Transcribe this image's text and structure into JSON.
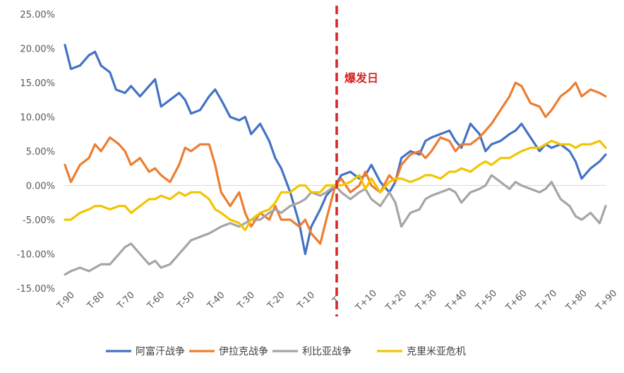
{
  "chart_data": {
    "type": "line",
    "title": "",
    "xlabel": "",
    "ylabel": "",
    "x_tick_labels": [
      "T-90",
      "T-80",
      "T-70",
      "T-60",
      "T-50",
      "T-40",
      "T-30",
      "T-20",
      "T-10",
      "T",
      "T+10",
      "T+20",
      "T+30",
      "T+40",
      "T+50",
      "T+60",
      "T+70",
      "T+80",
      "T+90"
    ],
    "y_tick_labels": [
      "-15.00%",
      "-10.00%",
      "-5.00%",
      "0.00%",
      "5.00%",
      "10.00%",
      "15.00%",
      "20.00%",
      "25.00%"
    ],
    "ylim": [
      -15,
      25
    ],
    "xlim": [
      -90,
      90
    ],
    "y_unit": "%",
    "grid": false,
    "legend_position": "bottom",
    "event_marker": {
      "x": 0,
      "label": "爆发日",
      "color": "#d62728",
      "style": "dashed"
    },
    "series": [
      {
        "name": "阿富汗战争",
        "color": "#4472c4",
        "x": [
          -90,
          -88,
          -85,
          -82,
          -80,
          -78,
          -75,
          -73,
          -70,
          -68,
          -65,
          -62,
          -60,
          -58,
          -55,
          -52,
          -50,
          -48,
          -45,
          -42,
          -40,
          -38,
          -35,
          -32,
          -30,
          -28,
          -25,
          -22,
          -20,
          -18,
          -15,
          -12,
          -10,
          -8,
          -5,
          -3,
          0,
          2,
          5,
          8,
          10,
          12,
          15,
          18,
          20,
          22,
          25,
          28,
          30,
          32,
          35,
          38,
          40,
          42,
          45,
          48,
          50,
          52,
          55,
          58,
          60,
          62,
          65,
          68,
          70,
          72,
          75,
          78,
          80,
          82,
          85,
          88,
          90
        ],
        "values": [
          20.5,
          17,
          17.5,
          19,
          19.5,
          17.5,
          16.5,
          14,
          13.5,
          14.5,
          13,
          14.5,
          15.5,
          11.5,
          12.5,
          13.5,
          12.5,
          10.5,
          11,
          13,
          14,
          12.5,
          10,
          9.5,
          10,
          7.5,
          9,
          6.5,
          4,
          2.5,
          -1,
          -5.5,
          -10,
          -6,
          -3.5,
          -1.5,
          0,
          1.5,
          2,
          1,
          1.5,
          3,
          0.5,
          -1,
          0.5,
          4,
          5,
          4.5,
          6.5,
          7,
          7.5,
          8,
          6.5,
          5.5,
          9,
          7.5,
          5,
          6,
          6.5,
          7.5,
          8,
          9,
          7,
          5,
          6,
          5.5,
          6,
          5,
          3.5,
          1,
          2.5,
          3.5,
          4.5
        ]
      },
      {
        "name": "伊拉克战争",
        "color": "#ed7d31",
        "x": [
          -90,
          -88,
          -85,
          -82,
          -80,
          -78,
          -75,
          -72,
          -70,
          -68,
          -65,
          -62,
          -60,
          -58,
          -55,
          -52,
          -50,
          -48,
          -45,
          -42,
          -40,
          -38,
          -35,
          -32,
          -30,
          -28,
          -25,
          -22,
          -20,
          -18,
          -15,
          -12,
          -10,
          -8,
          -5,
          -3,
          0,
          2,
          5,
          8,
          10,
          12,
          15,
          18,
          20,
          22,
          25,
          28,
          30,
          32,
          35,
          38,
          40,
          42,
          45,
          48,
          50,
          52,
          55,
          58,
          60,
          62,
          65,
          68,
          70,
          72,
          75,
          78,
          80,
          82,
          85,
          88,
          90
        ],
        "values": [
          3,
          0.5,
          3,
          4,
          6,
          5,
          7,
          6,
          5,
          3,
          4,
          2,
          2.5,
          1.5,
          0.5,
          3,
          5.5,
          5,
          6,
          6,
          3,
          -1,
          -3,
          -1,
          -4,
          -6,
          -4,
          -5,
          -3,
          -5,
          -5,
          -6,
          -5,
          -7,
          -8.5,
          -5,
          0,
          1,
          -1,
          0,
          2,
          0,
          -1,
          1.5,
          0.5,
          3,
          4.5,
          5,
          4,
          5,
          7,
          6.5,
          5,
          6,
          6,
          7,
          8,
          9,
          11,
          13,
          15,
          14.5,
          12,
          11.5,
          10,
          11,
          13,
          14,
          15,
          13,
          14,
          13.5,
          13
        ]
      },
      {
        "name": "利比亚战争",
        "color": "#a5a5a5",
        "x": [
          -90,
          -88,
          -85,
          -82,
          -80,
          -78,
          -75,
          -72,
          -70,
          -68,
          -65,
          -62,
          -60,
          -58,
          -55,
          -52,
          -50,
          -48,
          -45,
          -42,
          -40,
          -38,
          -35,
          -32,
          -30,
          -28,
          -25,
          -22,
          -20,
          -18,
          -15,
          -12,
          -10,
          -8,
          -5,
          -3,
          0,
          2,
          5,
          8,
          10,
          12,
          15,
          18,
          20,
          22,
          25,
          28,
          30,
          32,
          35,
          38,
          40,
          42,
          45,
          48,
          50,
          52,
          55,
          58,
          60,
          62,
          65,
          68,
          70,
          72,
          75,
          78,
          80,
          82,
          85,
          88,
          90
        ],
        "values": [
          -13,
          -12.5,
          -12,
          -12.5,
          -12,
          -11.5,
          -11.5,
          -10,
          -9,
          -8.5,
          -10,
          -11.5,
          -11,
          -12,
          -11.5,
          -10,
          -9,
          -8,
          -7.5,
          -7,
          -6.5,
          -6,
          -5.5,
          -6,
          -5.5,
          -5,
          -5,
          -4,
          -3.5,
          -4,
          -3,
          -2.5,
          -2,
          -1,
          -1.5,
          -1,
          0,
          -1,
          -2,
          -1,
          -0.5,
          -2,
          -3,
          -1,
          -2.5,
          -6,
          -4,
          -3.5,
          -2,
          -1.5,
          -1,
          -0.5,
          -1,
          -2.5,
          -1,
          -0.5,
          0,
          1.5,
          0.5,
          -0.5,
          0.5,
          0,
          -0.5,
          -1,
          -0.5,
          0.5,
          -2,
          -3,
          -4.5,
          -5,
          -4,
          -5.5,
          -3
        ]
      },
      {
        "name": "克里米亚危机",
        "color": "#f2c500",
        "x": [
          -90,
          -88,
          -85,
          -82,
          -80,
          -78,
          -75,
          -72,
          -70,
          -68,
          -65,
          -62,
          -60,
          -58,
          -55,
          -52,
          -50,
          -48,
          -45,
          -42,
          -40,
          -38,
          -35,
          -32,
          -30,
          -28,
          -25,
          -22,
          -20,
          -18,
          -15,
          -12,
          -10,
          -8,
          -5,
          -3,
          0,
          2,
          5,
          8,
          10,
          12,
          15,
          18,
          20,
          22,
          25,
          28,
          30,
          32,
          35,
          38,
          40,
          42,
          45,
          48,
          50,
          52,
          55,
          58,
          60,
          62,
          65,
          68,
          70,
          72,
          75,
          78,
          80,
          82,
          85,
          88,
          90
        ],
        "values": [
          -5,
          -5,
          -4,
          -3.5,
          -3,
          -3,
          -3.5,
          -3,
          -3,
          -4,
          -3,
          -2,
          -2,
          -1.5,
          -2,
          -1,
          -1.5,
          -1,
          -1,
          -2,
          -3.5,
          -4,
          -5,
          -5.5,
          -6.5,
          -5,
          -4,
          -3.5,
          -2.5,
          -1,
          -1,
          0,
          0,
          -1,
          -1,
          0,
          0,
          0,
          0.5,
          1.5,
          -0.5,
          1,
          -1,
          0.5,
          1,
          1,
          0.5,
          1,
          1.5,
          1.5,
          1,
          2,
          2,
          2.5,
          2,
          3,
          3.5,
          3,
          4,
          4,
          4.5,
          5,
          5.5,
          5.5,
          6,
          6.5,
          6,
          6,
          5.5,
          6,
          6,
          6.5,
          5.5
        ]
      }
    ]
  }
}
